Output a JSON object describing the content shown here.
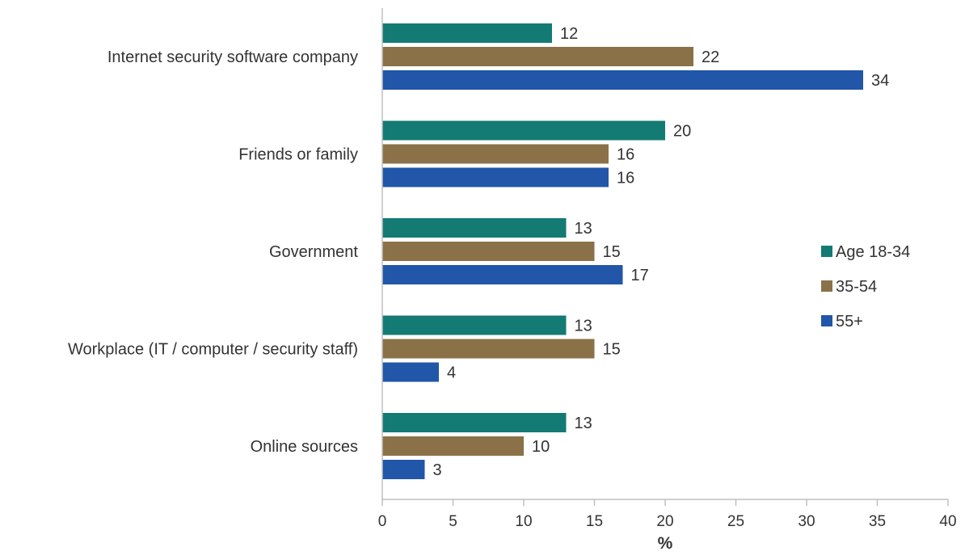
{
  "chart_data": {
    "type": "bar",
    "orientation": "horizontal",
    "categories": [
      "Internet security software company",
      "Friends or family",
      "Government",
      "Workplace (IT / computer / security staff)",
      "Online sources"
    ],
    "series": [
      {
        "name": "Age 18-34",
        "color": "#147a74",
        "values": [
          12,
          20,
          13,
          13,
          13
        ]
      },
      {
        "name": "35-54",
        "color": "#8b7148",
        "values": [
          22,
          16,
          15,
          15,
          10
        ]
      },
      {
        "name": "55+",
        "color": "#2156a8",
        "values": [
          34,
          16,
          17,
          4,
          3
        ]
      }
    ],
    "xlabel": "%",
    "xlim": [
      0,
      40
    ],
    "xticks": [
      0,
      5,
      10,
      15,
      20,
      25,
      30,
      35,
      40
    ],
    "grid": false,
    "legend_position": "right",
    "data_labels": true
  }
}
